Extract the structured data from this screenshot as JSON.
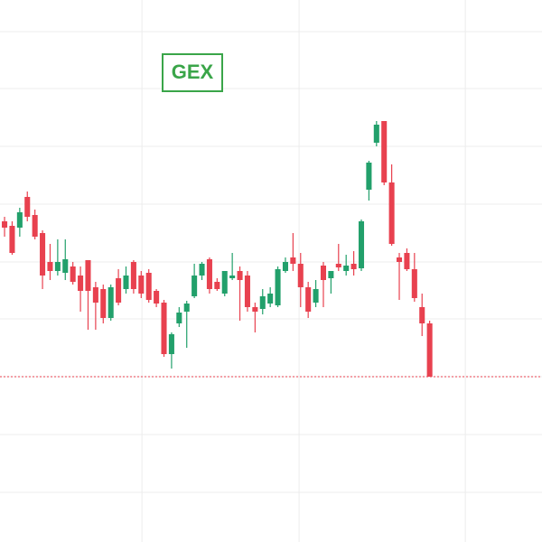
{
  "chart_data": {
    "type": "candlestick",
    "title": "GEX",
    "categories": [
      null,
      null,
      null,
      null,
      null,
      null,
      null,
      null,
      null,
      null,
      null,
      null,
      null,
      null,
      null,
      null,
      null,
      null,
      null,
      null,
      null,
      null,
      null,
      null,
      null,
      null,
      null,
      null,
      null,
      null,
      null,
      null,
      null,
      null,
      null,
      null,
      null,
      null,
      null,
      null,
      null,
      null,
      null,
      null,
      null,
      null,
      null,
      null,
      null,
      null,
      null,
      null,
      null,
      null,
      null,
      null,
      null
    ],
    "open": [
      355,
      350,
      348,
      382,
      362,
      342,
      310,
      300,
      298,
      305,
      295,
      312,
      282,
      280,
      248,
      292,
      280,
      310,
      295,
      298,
      278,
      265,
      208,
      242,
      255,
      272,
      295,
      313,
      288,
      275,
      292,
      300,
      295,
      260,
      258,
      264,
      262,
      300,
      315,
      308,
      282,
      265,
      306,
      292,
      308,
      300,
      308,
      303,
      390,
      442,
      466,
      398,
      315,
      320,
      302,
      260,
      242
    ],
    "high": [
      360,
      355,
      370,
      388,
      368,
      345,
      330,
      335,
      335,
      310,
      305,
      312,
      288,
      285,
      285,
      302,
      305,
      312,
      300,
      302,
      280,
      268,
      232,
      260,
      267,
      308,
      310,
      315,
      292,
      300,
      320,
      305,
      300,
      265,
      280,
      282,
      305,
      315,
      342,
      320,
      288,
      290,
      310,
      300,
      330,
      318,
      322,
      357,
      422,
      466,
      466,
      418,
      320,
      325,
      320,
      275,
      245
    ],
    "low": [
      338,
      318,
      338,
      355,
      335,
      280,
      290,
      295,
      290,
      285,
      255,
      235,
      235,
      242,
      245,
      262,
      275,
      275,
      270,
      265,
      260,
      205,
      192,
      238,
      215,
      270,
      290,
      275,
      278,
      272,
      290,
      245,
      255,
      232,
      252,
      260,
      260,
      298,
      300,
      260,
      248,
      260,
      260,
      275,
      300,
      295,
      295,
      300,
      378,
      438,
      395,
      328,
      268,
      300,
      266,
      228,
      183
    ],
    "close": [
      348,
      320,
      365,
      360,
      338,
      295,
      300,
      310,
      313,
      288,
      278,
      278,
      265,
      248,
      282,
      265,
      295,
      280,
      275,
      268,
      264,
      208,
      230,
      254,
      264,
      295,
      308,
      280,
      280,
      300,
      295,
      290,
      260,
      255,
      272,
      275,
      302,
      310,
      308,
      282,
      255,
      280,
      290,
      300,
      304,
      306,
      302,
      355,
      420,
      462,
      398,
      330,
      310,
      302,
      270,
      242,
      183
    ],
    "up_color": "#22a06b",
    "down_color": "#e8414f",
    "ylim": [
      0,
      600
    ],
    "yticks": [
      565,
      502,
      438,
      374,
      310,
      247,
      183,
      119,
      55
    ],
    "xlim": [
      -0.6,
      70.8
    ],
    "xticks": [
      18.1,
      38.8,
      60.7
    ],
    "grid": true,
    "last_price_line": true
  }
}
